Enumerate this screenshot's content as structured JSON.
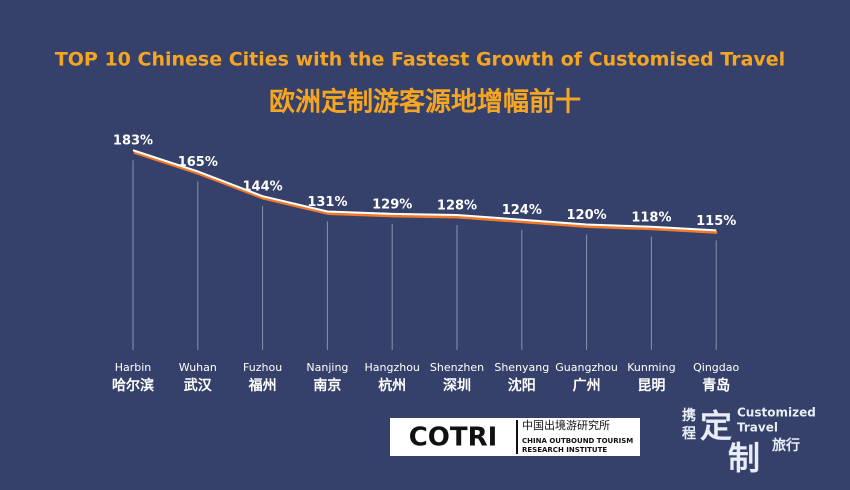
{
  "chart_data": {
    "type": "line",
    "title": "TOP 10 Chinese Cities with the Fastest Growth of Customised Travel",
    "subtitle": "欧洲定制游客源地增幅前十",
    "categories": [
      "Harbin",
      "Wuhan",
      "Fuzhou",
      "Nanjing",
      "Hangzhou",
      "Shenzhen",
      "Shenyang",
      "Guangzhou",
      "Kunming",
      "Qingdao"
    ],
    "categories_zh": [
      "哈尔滨",
      "武汉",
      "福州",
      "南京",
      "杭州",
      "深圳",
      "沈阳",
      "广州",
      "昆明",
      "青岛"
    ],
    "values": [
      183,
      165,
      144,
      131,
      129,
      128,
      124,
      120,
      118,
      115
    ],
    "value_labels": [
      "183%",
      "165%",
      "144%",
      "131%",
      "129%",
      "128%",
      "124%",
      "120%",
      "118%",
      "115%"
    ],
    "color": "#ffffff",
    "ylim": [
      100,
      190
    ]
  },
  "footer": {
    "cotri_mark": "COTRI",
    "cotri_zh": "中国出境游研究所",
    "cotri_en_1": "CHINA OUTBOUND TOURISM",
    "cotri_en_2": "RESEARCH INSTITUTE",
    "ctrip_a": "携",
    "ctrip_b": "程",
    "ctrip_big_1": "定",
    "ctrip_big_2": "制",
    "ctrip_small": "旅行",
    "ctrip_en_1": "Customized",
    "ctrip_en_2": "Travel"
  }
}
